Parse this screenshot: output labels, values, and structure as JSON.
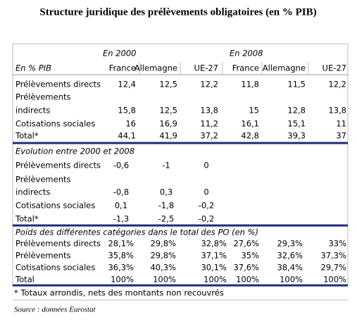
{
  "title": "Structure juridique des prélèvements obligatoires (en % PIB)",
  "table": {
    "period_headers": [
      "En 2000",
      "En 2008"
    ],
    "unit_label": "En % PIB",
    "columns": [
      "France",
      "Allemagne",
      "UE-27",
      "France",
      "Allemagne",
      "UE-27"
    ],
    "sections": [
      {
        "rows": [
          {
            "label": [
              "Prélèvements directs"
            ],
            "values": [
              "12,4",
              "12,5",
              "12,2",
              "11,8",
              "11,5",
              "12,2"
            ]
          },
          {
            "label": [
              "Prélèvements",
              "indirects"
            ],
            "values": [
              "15,8",
              "12,5",
              "13,8",
              "15",
              "12,8",
              "13,8"
            ]
          },
          {
            "label": [
              "Cotisations sociales"
            ],
            "values": [
              "16",
              "16,9",
              "11,2",
              "16,1",
              "15,1",
              "11"
            ]
          },
          {
            "label": [
              "Total*"
            ],
            "values": [
              "44,1",
              "41,9",
              "37,2",
              "42,8",
              "39,3",
              "37"
            ]
          }
        ]
      },
      {
        "heading": "Evolution entre 2000 et 2008",
        "rows": [
          {
            "label": [
              "Prélèvements directs"
            ],
            "values": [
              "-0,6",
              "-1",
              "0"
            ]
          },
          {
            "label": [
              "Prélèvements",
              "indirects"
            ],
            "values": [
              "-0,8",
              "0,3",
              "0"
            ]
          },
          {
            "label": [
              "Cotisations sociales"
            ],
            "values": [
              "0,1",
              "-1,8",
              "-0,2"
            ]
          },
          {
            "label": [
              "Total*"
            ],
            "values": [
              "-1,3",
              "-2,5",
              "-0,2"
            ]
          }
        ]
      },
      {
        "heading": "Poids des différentes catégories dans le total des PO (en %)",
        "rows": [
          {
            "label": [
              "Prélèvements directs"
            ],
            "values": [
              "28,1%",
              "29,8%",
              "32,8%",
              "27,6%",
              "29,3%",
              "33%"
            ]
          },
          {
            "label": [
              "Prélèvements"
            ],
            "values": [
              "35,8%",
              "29,8%",
              "37,1%",
              "35%",
              "32,6%",
              "37,3%"
            ]
          },
          {
            "label": [
              "Cotisations sociales"
            ],
            "values": [
              "36,3%",
              "40,3%",
              "30,1%",
              "37,6%",
              "38,4%",
              "29,7%"
            ]
          },
          {
            "label": [
              "Total"
            ],
            "values": [
              "100%",
              "100%",
              "100%",
              "100%",
              "100%",
              "100%"
            ]
          }
        ]
      }
    ]
  },
  "footnote": "* Totaux arrondis, nets des montants non recouvrés",
  "source": "Source : données Eurostat"
}
